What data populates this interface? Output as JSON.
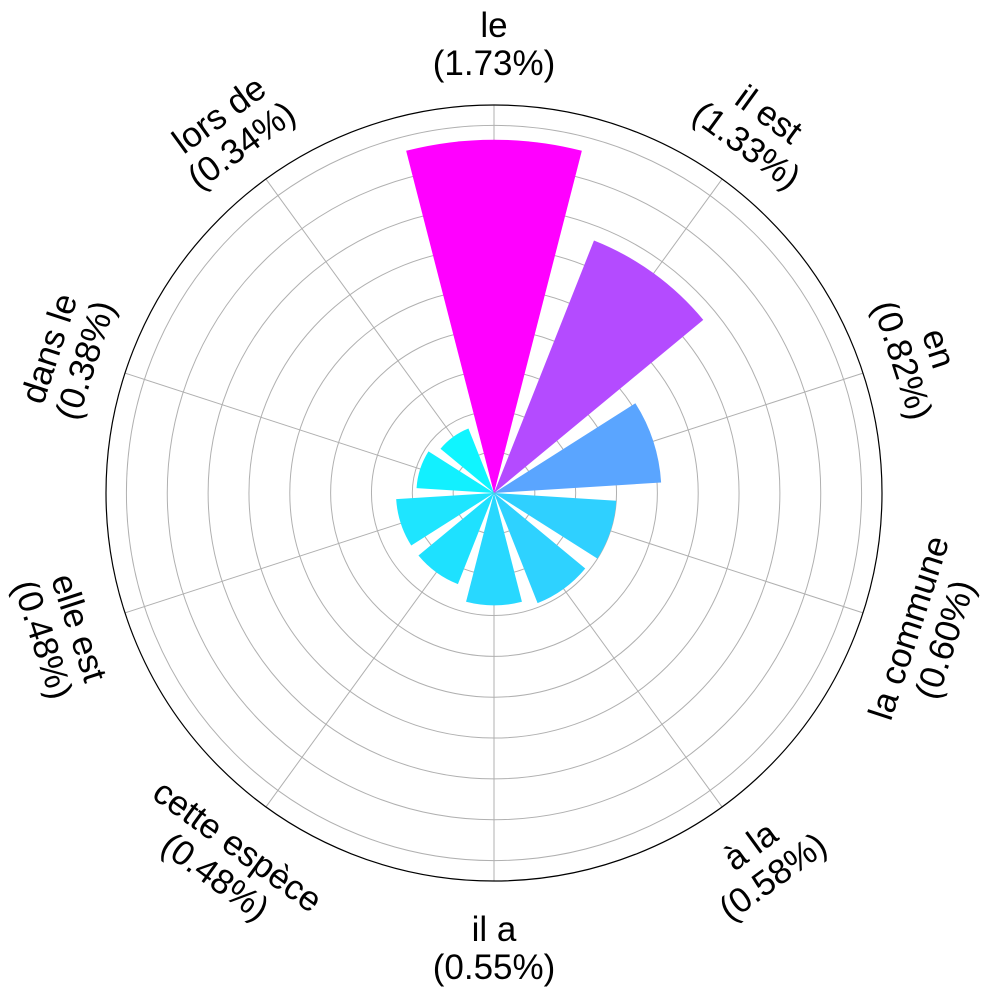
{
  "chart_data": {
    "type": "polar-bar",
    "title": "",
    "start_angle_deg": 90,
    "direction": "clockwise",
    "r_max": 1.9,
    "r_grid": [
      0.2,
      0.4,
      0.6,
      0.8,
      1.0,
      1.2,
      1.4,
      1.6,
      1.8
    ],
    "angular_grid_deg": [
      0,
      36,
      72,
      108,
      144,
      180,
      216,
      252,
      288,
      324
    ],
    "grid": true,
    "categories": [
      "le",
      "il est",
      "en",
      "la commune",
      "à la",
      "il a",
      "cette espèce",
      "elle est",
      "dans le",
      "lors de"
    ],
    "pct_labels": [
      "(1.73%)",
      "(1.33%)",
      "(0.82%)",
      "(0.60%)",
      "(0.58%)",
      "(0.55%)",
      "(0.48%)",
      "(0.48%)",
      "(0.38%)",
      "(0.34%)"
    ],
    "values": [
      1.73,
      1.33,
      0.82,
      0.6,
      0.58,
      0.55,
      0.48,
      0.48,
      0.38,
      0.34
    ],
    "colors": [
      "#ff00ff",
      "#b44bff",
      "#5aa5ff",
      "#2fd0ff",
      "#2ed2ff",
      "#28d8ff",
      "#1ee1ff",
      "#1ee5ff",
      "#12f0ff",
      "#0ff5ff"
    ]
  }
}
